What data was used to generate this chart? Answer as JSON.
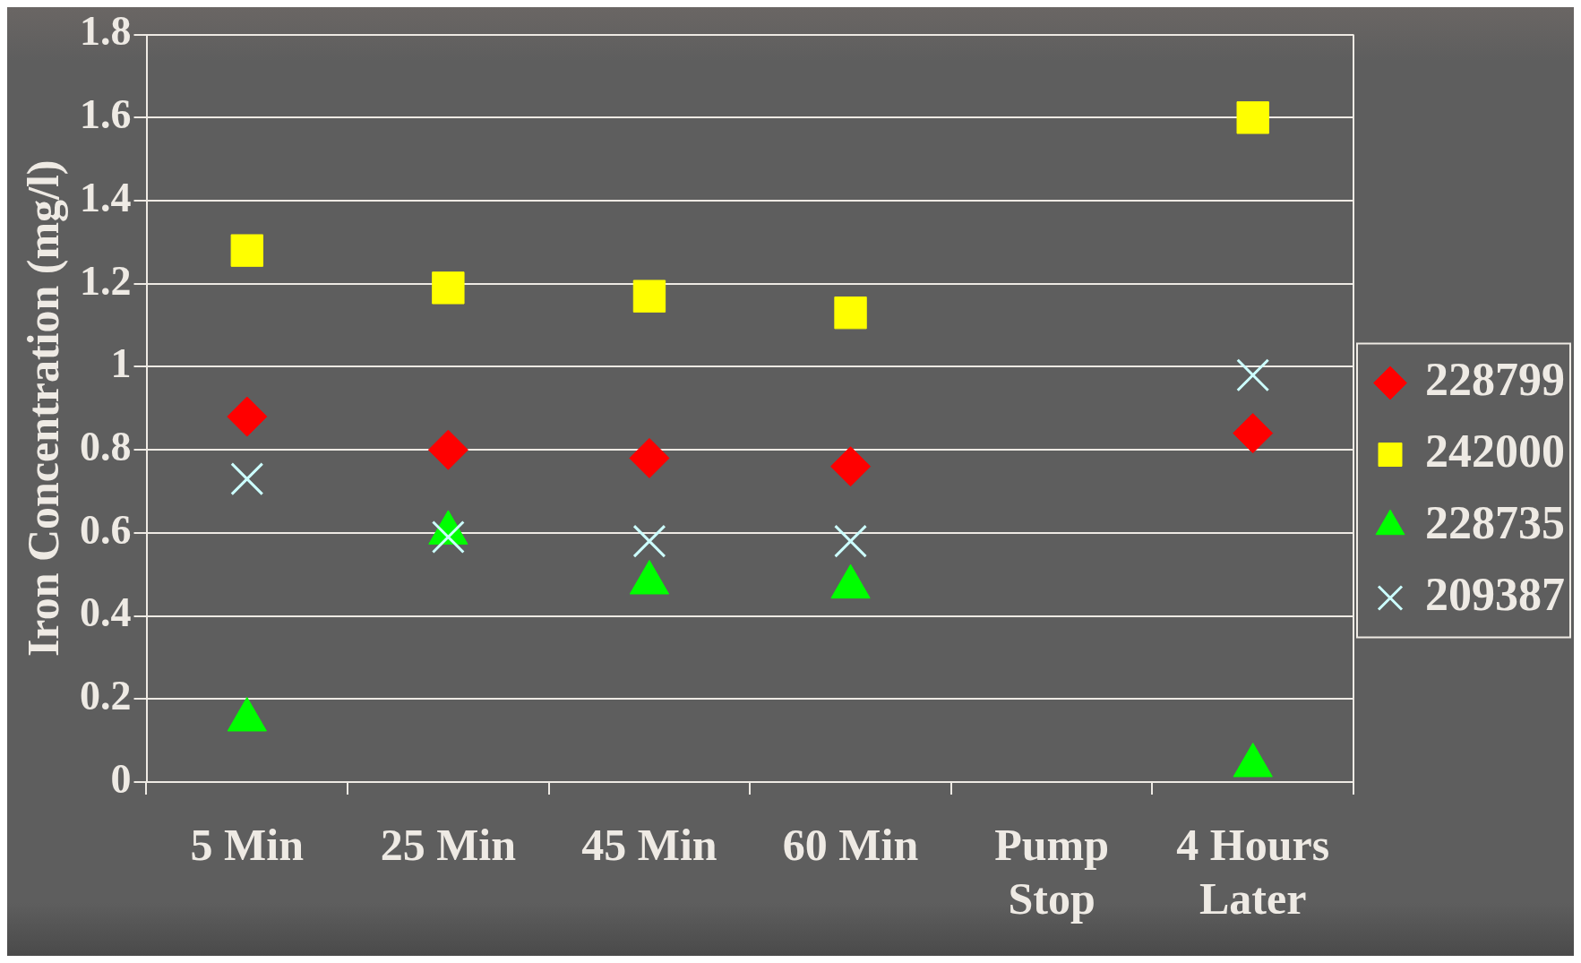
{
  "chart_data": {
    "type": "scatter",
    "ylabel": "Iron Concentration (mg/l)",
    "categories": [
      "5 Min",
      "25 Min",
      "45 Min",
      "60 Min",
      "Pump\nStop",
      "4 Hours\nLater"
    ],
    "series": [
      {
        "name": "228799",
        "color": "#ff0000",
        "marker": "diamond",
        "values": [
          0.88,
          0.8,
          0.78,
          0.76,
          null,
          0.84
        ]
      },
      {
        "name": "242000",
        "color": "#ffff00",
        "marker": "square",
        "values": [
          1.28,
          1.19,
          1.17,
          1.13,
          null,
          1.6
        ]
      },
      {
        "name": "228735",
        "color": "#00ff00",
        "marker": "triangle",
        "values": [
          0.15,
          0.6,
          0.48,
          0.47,
          null,
          0.04
        ]
      },
      {
        "name": "209387",
        "color": "#ccffff",
        "marker": "cross",
        "values": [
          0.73,
          0.59,
          0.58,
          0.58,
          null,
          0.98
        ]
      }
    ],
    "ylim": [
      0,
      1.8
    ],
    "yticks": [
      0,
      0.2,
      0.4,
      0.6,
      0.8,
      1,
      1.2,
      1.4,
      1.6,
      1.8
    ],
    "grid": "y",
    "legend": "right"
  }
}
